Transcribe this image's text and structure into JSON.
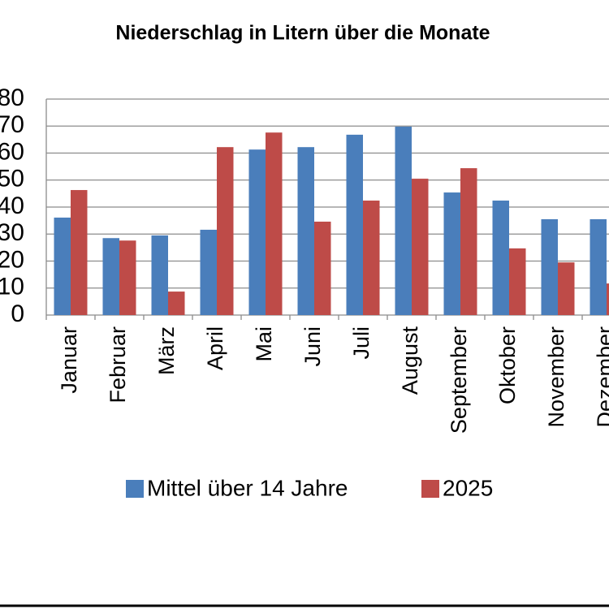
{
  "chart_data": {
    "type": "bar",
    "title": "Niederschlag in Litern über die Monate",
    "categories": [
      "Januar",
      "Februar",
      "März",
      "April",
      "Mai",
      "Juni",
      "Juli",
      "August",
      "September",
      "Oktober",
      "November",
      "Dezember"
    ],
    "series": [
      {
        "name": "Mittel über 14 Jahre",
        "color": "#4a7ebb",
        "values": [
          36.1,
          28.5,
          29.5,
          31.6,
          61.3,
          62.2,
          66.8,
          69.8,
          45.4,
          42.4,
          35.5,
          35.5
        ]
      },
      {
        "name": "2025",
        "color": "#be4b48",
        "values": [
          46.3,
          27.6,
          8.7,
          62.2,
          67.6,
          34.6,
          42.4,
          50.5,
          54.4,
          24.7,
          19.5,
          11.7
        ]
      }
    ],
    "ylim": [
      0,
      80
    ],
    "yticks": [
      0,
      10,
      20,
      30,
      40,
      50,
      60,
      70,
      80
    ],
    "grid": true,
    "legend": "bottom"
  }
}
